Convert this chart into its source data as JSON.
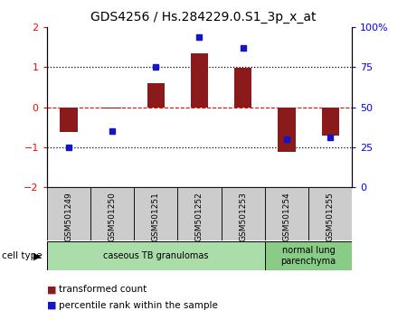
{
  "title": "GDS4256 / Hs.284229.0.S1_3p_x_at",
  "samples": [
    "GSM501249",
    "GSM501250",
    "GSM501251",
    "GSM501252",
    "GSM501253",
    "GSM501254",
    "GSM501255"
  ],
  "transformed_count": [
    -0.62,
    -0.04,
    0.6,
    1.35,
    0.98,
    -1.12,
    -0.72
  ],
  "percentile_rank_pct": [
    25,
    35,
    75,
    94,
    87,
    30,
    31
  ],
  "ylim_left": [
    -2,
    2
  ],
  "ylim_right": [
    0,
    100
  ],
  "yticks_left": [
    -2,
    -1,
    0,
    1,
    2
  ],
  "yticks_right": [
    0,
    25,
    50,
    75,
    100
  ],
  "ytick_labels_right": [
    "0",
    "25",
    "50",
    "75",
    "100%"
  ],
  "bar_color": "#8B1A1A",
  "dot_color": "#1414C8",
  "cell_type_groups": [
    {
      "label": "caseous TB granulomas",
      "indices": [
        0,
        1,
        2,
        3,
        4
      ],
      "color": "#AADDAA"
    },
    {
      "label": "normal lung\nparenchyma",
      "indices": [
        5,
        6
      ],
      "color": "#88CC88"
    }
  ],
  "legend_items": [
    {
      "label": "transformed count",
      "color": "#8B1A1A"
    },
    {
      "label": "percentile rank within the sample",
      "color": "#1414C8"
    }
  ],
  "cell_type_label": "cell type",
  "background_color": "#ffffff",
  "bar_width": 0.4
}
